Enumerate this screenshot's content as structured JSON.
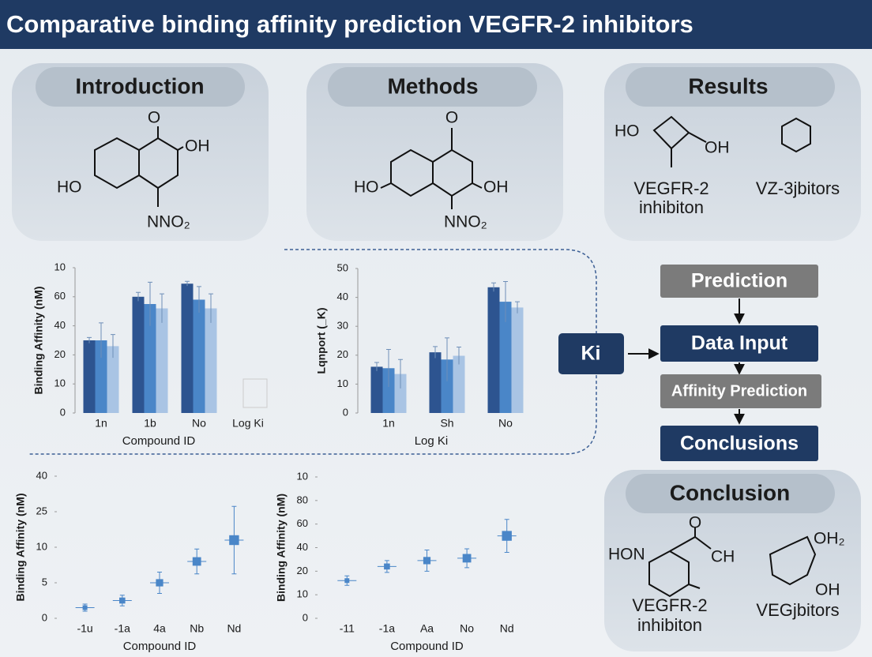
{
  "title": "Comparative binding affinity prediction VEGFR-2 inhibitors",
  "panels": {
    "introduction": {
      "heading": "Introduction",
      "labels": [
        "O",
        "OH",
        "HO",
        "NNO₂"
      ]
    },
    "methods": {
      "heading": "Methods",
      "labels": [
        "O",
        "HO",
        "OH",
        "NNO₂"
      ]
    },
    "results": {
      "heading": "Results",
      "labels": [
        "HO",
        "OH"
      ],
      "captions": [
        [
          "VEGFR-2",
          "inhibiton"
        ],
        [
          "VZ-3jbitors"
        ]
      ]
    },
    "conclusion": {
      "heading": "Conclusion",
      "labels": [
        "HON",
        "O",
        "CH",
        "OH₂",
        "OH"
      ],
      "captions": [
        [
          "VEGFR-2",
          "inhibiton"
        ],
        [
          "VEGjbitors"
        ]
      ]
    }
  },
  "flow": {
    "input": "Ki",
    "steps": [
      "Prediction",
      "Data Input",
      "Affinity Prediction",
      "Conclusions"
    ]
  },
  "chart_data": [
    {
      "type": "bar",
      "y_label": "Binding Affinity (nM)",
      "x_label": "Compound ID",
      "categories": [
        "1n",
        "1b",
        "No",
        "Log Ki"
      ],
      "series": [
        {
          "color": "#2d5490",
          "values": [
            25,
            40,
            44.5,
            null
          ],
          "errors": [
            1,
            1.5,
            0.8,
            null
          ]
        },
        {
          "color": "#4a86c8",
          "values": [
            25,
            37.5,
            39,
            null
          ],
          "errors": [
            6,
            7.5,
            4.5,
            null
          ]
        },
        {
          "color": "#a9c4e4",
          "values": [
            23,
            36,
            36,
            null
          ],
          "errors": [
            4,
            5,
            5,
            null
          ]
        }
      ],
      "ylim": [
        0,
        50
      ],
      "yticks": [
        0,
        10,
        20,
        {
          "value": 30,
          "label": "40"
        },
        {
          "value": 40,
          "label": "60"
        },
        {
          "value": 50,
          "label": "10"
        }
      ]
    },
    {
      "type": "bar",
      "y_label": "Lqnport (_K)",
      "x_label": "Log Ki",
      "categories": [
        "1n",
        "Sh",
        "No"
      ],
      "series": [
        {
          "color": "#2d5490",
          "values": [
            16,
            21,
            43.5
          ],
          "errors": [
            1.5,
            2,
            1.5
          ]
        },
        {
          "color": "#4a86c8",
          "values": [
            15.5,
            18.5,
            38.5
          ],
          "errors": [
            6.5,
            7.5,
            7
          ]
        },
        {
          "color": "#a9c4e4",
          "values": [
            13.5,
            19.8,
            36.5
          ],
          "errors": [
            5,
            3,
            2
          ]
        }
      ],
      "ylim": [
        0,
        50
      ],
      "yticks": [
        0,
        10,
        20,
        30,
        40,
        50
      ]
    },
    {
      "type": "scatter",
      "y_label": "Binding Affinity (nM)",
      "x_label": "Compound ID",
      "categories": [
        "-1u",
        "-1a",
        "4a",
        "Nb",
        "Nd"
      ],
      "color": "#4a86c8",
      "values": [
        3,
        5,
        10,
        16,
        22
      ],
      "errors": [
        1,
        1.5,
        3,
        3.5,
        9.5
      ],
      "ylim": [
        0,
        40
      ],
      "yticks": [
        0,
        {
          "value": 10,
          "label": "5"
        },
        {
          "value": 20,
          "label": "10"
        },
        {
          "value": 30,
          "label": "25"
        },
        40
      ]
    },
    {
      "type": "scatter",
      "y_label": "Binding Affinity (nM)",
      "x_label": "Compound ID",
      "categories": [
        "-11",
        "-1a",
        "Aa",
        "No",
        "Nd"
      ],
      "color": "#4a86c8",
      "values": [
        16,
        22,
        24.5,
        25.5,
        35
      ],
      "errors": [
        2,
        2.5,
        4.5,
        4,
        7
      ],
      "ylim": [
        0,
        60
      ],
      "yticks": [
        0,
        10,
        20,
        {
          "value": 30,
          "label": "40"
        },
        {
          "value": 40,
          "label": "60"
        },
        {
          "value": 50,
          "label": "80"
        },
        {
          "value": 60,
          "label": "10"
        }
      ]
    }
  ]
}
